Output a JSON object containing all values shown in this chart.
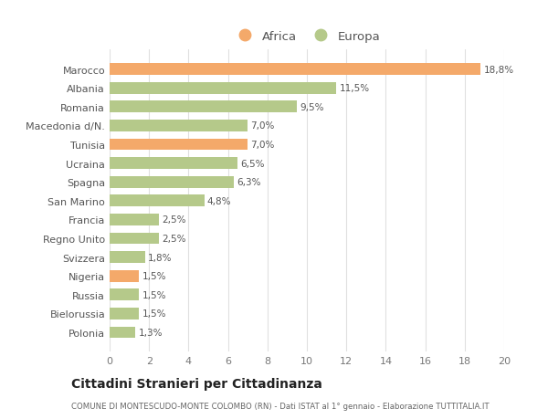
{
  "categories": [
    "Polonia",
    "Bielorussia",
    "Russia",
    "Nigeria",
    "Svizzera",
    "Regno Unito",
    "Francia",
    "San Marino",
    "Spagna",
    "Ucraina",
    "Tunisia",
    "Macedonia d/N.",
    "Romania",
    "Albania",
    "Marocco"
  ],
  "values": [
    1.3,
    1.5,
    1.5,
    1.5,
    1.8,
    2.5,
    2.5,
    4.8,
    6.3,
    6.5,
    7.0,
    7.0,
    9.5,
    11.5,
    18.8
  ],
  "labels": [
    "1,3%",
    "1,5%",
    "1,5%",
    "1,5%",
    "1,8%",
    "2,5%",
    "2,5%",
    "4,8%",
    "6,3%",
    "6,5%",
    "7,0%",
    "7,0%",
    "9,5%",
    "11,5%",
    "18,8%"
  ],
  "colors": [
    "#b5c98a",
    "#b5c98a",
    "#b5c98a",
    "#f4a96a",
    "#b5c98a",
    "#b5c98a",
    "#b5c98a",
    "#b5c98a",
    "#b5c98a",
    "#b5c98a",
    "#f4a96a",
    "#b5c98a",
    "#b5c98a",
    "#b5c98a",
    "#f4a96a"
  ],
  "africa_color": "#f4a96a",
  "europa_color": "#b5c98a",
  "background_color": "#ffffff",
  "grid_color": "#e0e0e0",
  "title": "Cittadini Stranieri per Cittadinanza",
  "subtitle": "COMUNE DI MONTESCUDO-MONTE COLOMBO (RN) - Dati ISTAT al 1° gennaio - Elaborazione TUTTITALIA.IT",
  "xlim": [
    0,
    20
  ],
  "xticks": [
    0,
    2,
    4,
    6,
    8,
    10,
    12,
    14,
    16,
    18,
    20
  ],
  "legend_africa": "Africa",
  "legend_europa": "Europa"
}
